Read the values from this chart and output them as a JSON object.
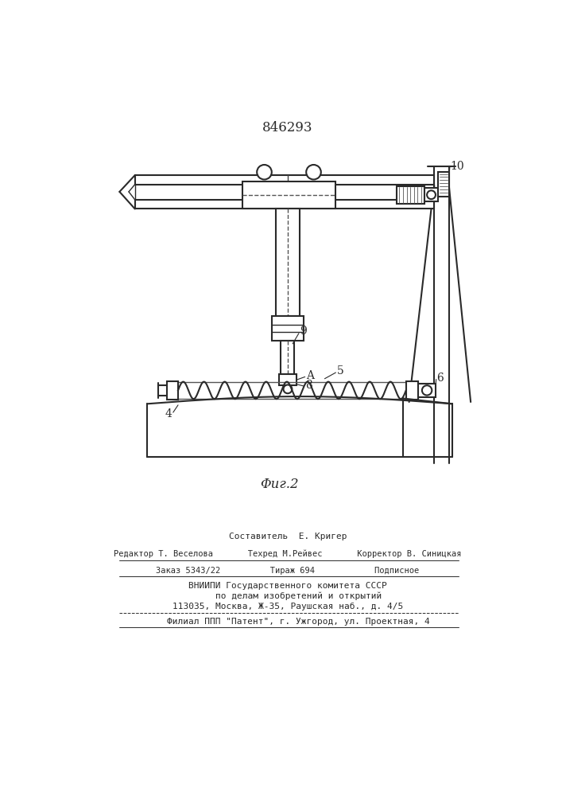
{
  "patent_number": "846293",
  "fig_label": "Φиг.2",
  "background_color": "#ffffff",
  "line_color": "#2a2a2a",
  "footer_lines": [
    "Составитель  Е. Кригер",
    "Редактор Т. Веселова       Техред М.Рейвес       Корректор В. Синицкая",
    "Заказ 5343/22          Тираж 694            Подписное",
    "ВНИИПИ Государственного комитета СССР",
    "    по делам изобретений и открытий",
    "113035, Москва, Ж-35, Раушская наб., д. 4/5",
    "    Филиал ППП \"Патент\", г. Ужгород, ул. Проектная, 4"
  ]
}
